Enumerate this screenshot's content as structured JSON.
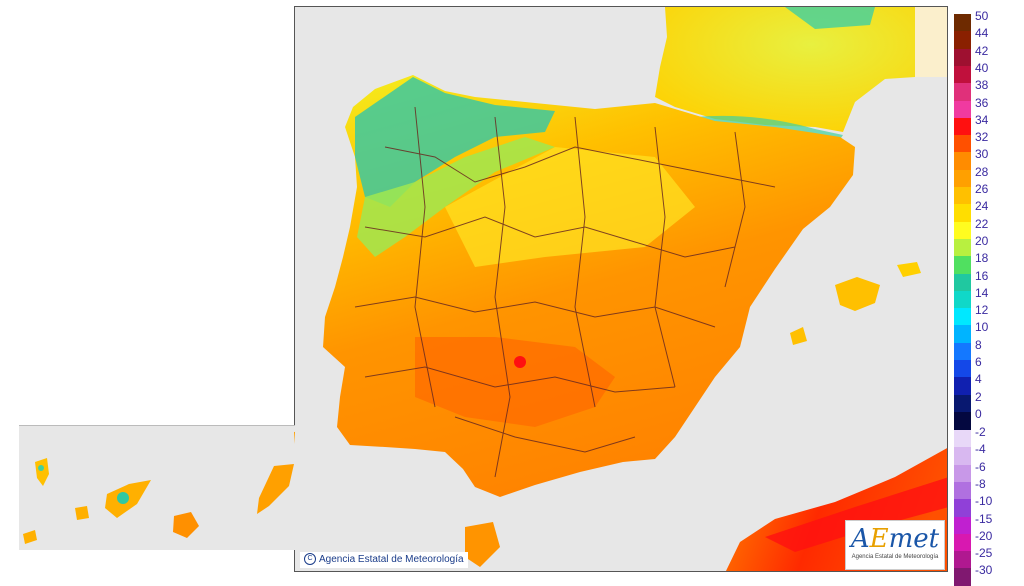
{
  "map": {
    "copyright": "Agencia Estatal de Meteorología",
    "logo": {
      "mark_a": "A",
      "mark_e": "E",
      "mark_rest": "met",
      "subtitle": "Agencia Estatal de Meteorología"
    }
  },
  "legend": {
    "warm": [
      {
        "label": "50",
        "color": "#6e2a00"
      },
      {
        "label": "44",
        "color": "#8a2000"
      },
      {
        "label": "42",
        "color": "#9e1030"
      },
      {
        "label": "40",
        "color": "#c0103c"
      },
      {
        "label": "38",
        "color": "#e0307a"
      },
      {
        "label": "36",
        "color": "#f03aa0"
      },
      {
        "label": "34",
        "color": "#ff1010"
      },
      {
        "label": "32",
        "color": "#ff5000"
      },
      {
        "label": "30",
        "color": "#ff8c00"
      },
      {
        "label": "28",
        "color": "#ffa000"
      },
      {
        "label": "26",
        "color": "#ffc000"
      },
      {
        "label": "24",
        "color": "#ffde00"
      },
      {
        "label": "22",
        "color": "#fffc20"
      },
      {
        "label": "20",
        "color": "#b8f040"
      },
      {
        "label": "18",
        "color": "#50e060"
      },
      {
        "label": "16",
        "color": "#20c8a0"
      },
      {
        "label": "14",
        "color": "#10d8c8"
      },
      {
        "label": "12",
        "color": "#00e8ff"
      },
      {
        "label": "10",
        "color": "#00b4ff"
      },
      {
        "label": "8",
        "color": "#1478ff"
      },
      {
        "label": "6",
        "color": "#1448e8"
      },
      {
        "label": "4",
        "color": "#1020b0"
      },
      {
        "label": "2",
        "color": "#081870"
      },
      {
        "label": "0",
        "color": "#040840"
      }
    ],
    "cold": [
      {
        "label": "-2",
        "color": "#e8d8f8"
      },
      {
        "label": "-4",
        "color": "#d8b8f0"
      },
      {
        "label": "-6",
        "color": "#c898e8"
      },
      {
        "label": "-8",
        "color": "#b070e0"
      },
      {
        "label": "-10",
        "color": "#9040d8"
      },
      {
        "label": "-15",
        "color": "#c020d0"
      },
      {
        "label": "-20",
        "color": "#d818b0"
      },
      {
        "label": "-25",
        "color": "#b01890"
      },
      {
        "label": "-30",
        "color": "#801870"
      }
    ]
  }
}
